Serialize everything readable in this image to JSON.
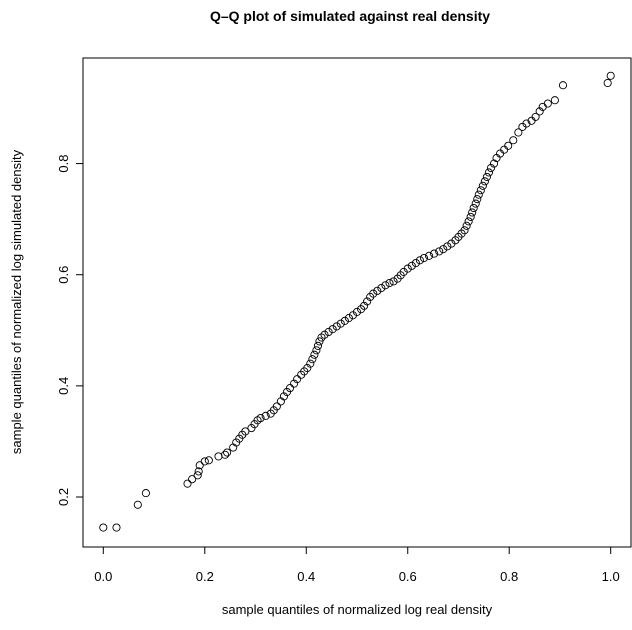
{
  "chart_data": {
    "type": "scatter",
    "title": "Q–Q plot of simulated against real density",
    "xlabel": "sample quantiles of normalized log real density",
    "ylabel": "sample quantiles of normalized log simulated density",
    "xlim": [
      -0.04,
      1.04
    ],
    "ylim": [
      0.11,
      0.99
    ],
    "xticks": [
      0.0,
      0.2,
      0.4,
      0.6,
      0.8,
      1.0
    ],
    "xtick_labels": [
      "0.0",
      "0.2",
      "0.4",
      "0.6",
      "0.8",
      "1.0"
    ],
    "yticks": [
      0.2,
      0.4,
      0.6,
      0.8
    ],
    "ytick_labels": [
      "0.2",
      "0.4",
      "0.6",
      "0.8"
    ],
    "grid": false,
    "marker": "open-circle",
    "series": [
      {
        "points": [
          [
            0.0,
            0.145
          ],
          [
            0.026,
            0.145
          ],
          [
            0.068,
            0.186
          ],
          [
            0.084,
            0.207
          ],
          [
            0.166,
            0.224
          ],
          [
            0.175,
            0.232
          ],
          [
            0.186,
            0.239
          ],
          [
            0.188,
            0.246
          ],
          [
            0.19,
            0.257
          ],
          [
            0.2,
            0.264
          ],
          [
            0.208,
            0.266
          ],
          [
            0.227,
            0.273
          ],
          [
            0.24,
            0.276
          ],
          [
            0.244,
            0.28
          ],
          [
            0.256,
            0.289
          ],
          [
            0.262,
            0.298
          ],
          [
            0.268,
            0.305
          ],
          [
            0.274,
            0.312
          ],
          [
            0.28,
            0.318
          ],
          [
            0.292,
            0.324
          ],
          [
            0.298,
            0.331
          ],
          [
            0.304,
            0.338
          ],
          [
            0.31,
            0.342
          ],
          [
            0.32,
            0.346
          ],
          [
            0.33,
            0.35
          ],
          [
            0.336,
            0.356
          ],
          [
            0.342,
            0.363
          ],
          [
            0.35,
            0.372
          ],
          [
            0.356,
            0.381
          ],
          [
            0.362,
            0.389
          ],
          [
            0.368,
            0.396
          ],
          [
            0.376,
            0.404
          ],
          [
            0.382,
            0.412
          ],
          [
            0.39,
            0.42
          ],
          [
            0.396,
            0.426
          ],
          [
            0.402,
            0.432
          ],
          [
            0.408,
            0.44
          ],
          [
            0.412,
            0.448
          ],
          [
            0.416,
            0.456
          ],
          [
            0.42,
            0.464
          ],
          [
            0.423,
            0.472
          ],
          [
            0.426,
            0.48
          ],
          [
            0.43,
            0.487
          ],
          [
            0.436,
            0.492
          ],
          [
            0.444,
            0.497
          ],
          [
            0.452,
            0.502
          ],
          [
            0.46,
            0.507
          ],
          [
            0.468,
            0.512
          ],
          [
            0.476,
            0.517
          ],
          [
            0.484,
            0.522
          ],
          [
            0.492,
            0.527
          ],
          [
            0.5,
            0.533
          ],
          [
            0.508,
            0.538
          ],
          [
            0.514,
            0.544
          ],
          [
            0.52,
            0.552
          ],
          [
            0.526,
            0.56
          ],
          [
            0.532,
            0.566
          ],
          [
            0.54,
            0.571
          ],
          [
            0.548,
            0.576
          ],
          [
            0.556,
            0.581
          ],
          [
            0.564,
            0.585
          ],
          [
            0.572,
            0.588
          ],
          [
            0.58,
            0.593
          ],
          [
            0.586,
            0.599
          ],
          [
            0.592,
            0.605
          ],
          [
            0.6,
            0.611
          ],
          [
            0.608,
            0.616
          ],
          [
            0.616,
            0.621
          ],
          [
            0.624,
            0.626
          ],
          [
            0.632,
            0.63
          ],
          [
            0.642,
            0.634
          ],
          [
            0.652,
            0.638
          ],
          [
            0.662,
            0.642
          ],
          [
            0.67,
            0.646
          ],
          [
            0.678,
            0.651
          ],
          [
            0.686,
            0.656
          ],
          [
            0.694,
            0.662
          ],
          [
            0.7,
            0.668
          ],
          [
            0.706,
            0.674
          ],
          [
            0.712,
            0.68
          ],
          [
            0.716,
            0.688
          ],
          [
            0.72,
            0.696
          ],
          [
            0.724,
            0.704
          ],
          [
            0.727,
            0.712
          ],
          [
            0.73,
            0.72
          ],
          [
            0.734,
            0.728
          ],
          [
            0.737,
            0.736
          ],
          [
            0.74,
            0.744
          ],
          [
            0.744,
            0.752
          ],
          [
            0.748,
            0.76
          ],
          [
            0.752,
            0.768
          ],
          [
            0.756,
            0.776
          ],
          [
            0.76,
            0.784
          ],
          [
            0.764,
            0.792
          ],
          [
            0.77,
            0.8
          ],
          [
            0.775,
            0.81
          ],
          [
            0.782,
            0.818
          ],
          [
            0.79,
            0.825
          ],
          [
            0.798,
            0.832
          ],
          [
            0.808,
            0.842
          ],
          [
            0.818,
            0.856
          ],
          [
            0.826,
            0.866
          ],
          [
            0.834,
            0.872
          ],
          [
            0.844,
            0.877
          ],
          [
            0.852,
            0.884
          ],
          [
            0.86,
            0.894
          ],
          [
            0.866,
            0.902
          ],
          [
            0.876,
            0.908
          ],
          [
            0.89,
            0.914
          ],
          [
            0.906,
            0.941
          ],
          [
            0.994,
            0.945
          ],
          [
            1.0,
            0.958
          ]
        ]
      }
    ]
  }
}
